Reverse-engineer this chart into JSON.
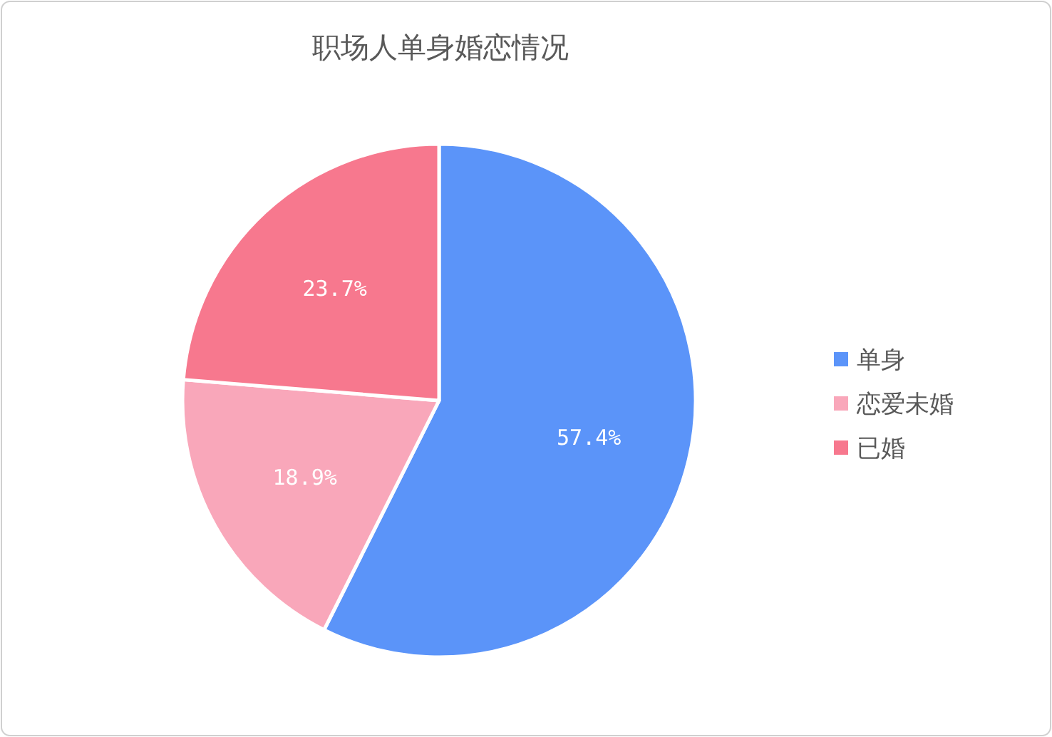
{
  "chart_data": {
    "type": "pie",
    "title": "职场人单身婚恋情况",
    "categories": [
      "单身",
      "恋爱未婚",
      "已婚"
    ],
    "values": [
      57.4,
      18.9,
      23.7
    ],
    "colors": [
      "#5b94f9",
      "#f9a7ba",
      "#f7788e"
    ],
    "value_labels": [
      "57.4%",
      "18.9%",
      "23.7%"
    ],
    "legend": "right"
  }
}
